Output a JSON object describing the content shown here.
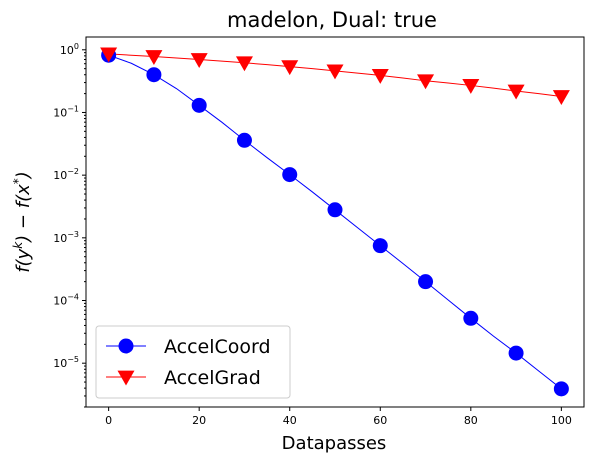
{
  "chart_data": {
    "type": "line",
    "title": "madelon, Dual: true",
    "xlabel": "Datapasses",
    "ylabel": "f(y^k) − f(x^*)",
    "yscale": "log",
    "xlim": [
      -5,
      105
    ],
    "ylim": [
      2e-06,
      1.6
    ],
    "xticks": [
      0,
      20,
      40,
      60,
      80,
      100
    ],
    "yticks": [
      1e-05,
      0.0001,
      0.001,
      0.01,
      0.1,
      1
    ],
    "grid": false,
    "legend_position": "lower-left",
    "series": [
      {
        "name": "AccelCoord",
        "color": "#0000ff",
        "marker": "circle",
        "x": [
          0,
          10,
          20,
          30,
          40,
          50,
          60,
          70,
          80,
          90,
          100
        ],
        "y": [
          0.82,
          0.4,
          0.13,
          0.036,
          0.0102,
          0.0028,
          0.00075,
          0.0002,
          5.2e-05,
          1.45e-05,
          3.9e-06
        ],
        "curve": [
          [
            0,
            0.82
          ],
          [
            5,
            0.61
          ],
          [
            10,
            0.4
          ],
          [
            15,
            0.24
          ],
          [
            20,
            0.13
          ],
          [
            25,
            0.07
          ],
          [
            30,
            0.036
          ],
          [
            35,
            0.019
          ],
          [
            40,
            0.0102
          ],
          [
            45,
            0.0054
          ],
          [
            50,
            0.0028
          ],
          [
            55,
            0.00145
          ],
          [
            60,
            0.00075
          ],
          [
            65,
            0.00039
          ],
          [
            70,
            0.0002
          ],
          [
            75,
            0.000102
          ],
          [
            80,
            5.2e-05
          ],
          [
            85,
            2.7e-05
          ],
          [
            90,
            1.45e-05
          ],
          [
            95,
            7.5e-06
          ],
          [
            100,
            3.9e-06
          ]
        ]
      },
      {
        "name": "AccelGrad",
        "color": "#ff0000",
        "marker": "triangle-down",
        "x": [
          0,
          10,
          20,
          30,
          40,
          50,
          60,
          70,
          80,
          90,
          100
        ],
        "y": [
          0.86,
          0.78,
          0.7,
          0.62,
          0.54,
          0.46,
          0.39,
          0.32,
          0.27,
          0.22,
          0.18
        ],
        "curve": [
          [
            0,
            0.86
          ],
          [
            5,
            0.82
          ],
          [
            10,
            0.78
          ],
          [
            15,
            0.74
          ],
          [
            20,
            0.7
          ],
          [
            25,
            0.66
          ],
          [
            30,
            0.62
          ],
          [
            35,
            0.58
          ],
          [
            40,
            0.54
          ],
          [
            45,
            0.5
          ],
          [
            50,
            0.46
          ],
          [
            55,
            0.425
          ],
          [
            60,
            0.39
          ],
          [
            65,
            0.355
          ],
          [
            70,
            0.32
          ],
          [
            75,
            0.295
          ],
          [
            80,
            0.27
          ],
          [
            85,
            0.245
          ],
          [
            90,
            0.22
          ],
          [
            95,
            0.2
          ],
          [
            100,
            0.18
          ]
        ]
      }
    ]
  }
}
